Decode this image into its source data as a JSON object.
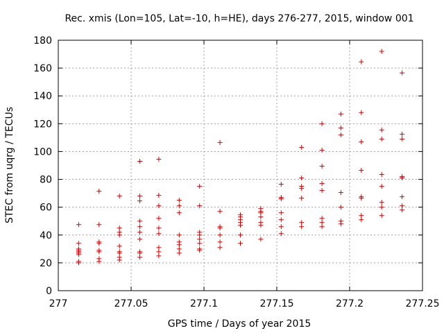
{
  "chart_data": {
    "type": "scatter",
    "title": "Rec. xmis (Lon=105, Lat=-10, h=HE), days 276-277, 2015, window 001",
    "xlabel": "GPS time / Days of year 2015",
    "ylabel": "STEC from uqrg / TECUs",
    "xlim": [
      277,
      277.25
    ],
    "ylim": [
      0,
      180
    ],
    "xticks": [
      "277",
      "277.05",
      "277.1",
      "277.15",
      "277.2",
      "277.25"
    ],
    "yticks": [
      "0",
      "20",
      "40",
      "60",
      "80",
      "100",
      "120",
      "140",
      "160",
      "180"
    ],
    "grid": true,
    "marker": "+",
    "color": "#d00000",
    "points": [
      [
        277.014,
        21
      ],
      [
        277.014,
        20
      ],
      [
        277.014,
        26
      ],
      [
        277.014,
        27
      ],
      [
        277.014,
        28
      ],
      [
        277.014,
        29
      ],
      [
        277.014,
        30
      ],
      [
        277.014,
        34
      ],
      [
        277.014,
        47.5
      ],
      [
        277.028,
        21
      ],
      [
        277.028,
        23
      ],
      [
        277.028,
        28
      ],
      [
        277.028,
        29
      ],
      [
        277.028,
        34
      ],
      [
        277.028,
        35
      ],
      [
        277.028,
        47.5
      ],
      [
        277.028,
        71.5
      ],
      [
        277.042,
        22
      ],
      [
        277.042,
        24
      ],
      [
        277.042,
        27
      ],
      [
        277.042,
        28
      ],
      [
        277.042,
        32
      ],
      [
        277.042,
        40
      ],
      [
        277.042,
        42
      ],
      [
        277.042,
        45
      ],
      [
        277.042,
        68
      ],
      [
        277.056,
        24
      ],
      [
        277.056,
        27
      ],
      [
        277.056,
        28
      ],
      [
        277.056,
        37
      ],
      [
        277.056,
        42
      ],
      [
        277.056,
        46
      ],
      [
        277.056,
        50
      ],
      [
        277.056,
        64.5
      ],
      [
        277.056,
        68
      ],
      [
        277.056,
        93
      ],
      [
        277.069,
        25
      ],
      [
        277.069,
        28
      ],
      [
        277.069,
        31
      ],
      [
        277.069,
        41
      ],
      [
        277.069,
        45
      ],
      [
        277.069,
        52
      ],
      [
        277.069,
        61
      ],
      [
        277.069,
        68.5
      ],
      [
        277.069,
        94.5
      ],
      [
        277.083,
        27
      ],
      [
        277.083,
        30
      ],
      [
        277.083,
        33
      ],
      [
        277.083,
        35
      ],
      [
        277.083,
        40
      ],
      [
        277.083,
        56
      ],
      [
        277.083,
        61
      ],
      [
        277.083,
        65
      ],
      [
        277.097,
        29
      ],
      [
        277.097,
        30
      ],
      [
        277.097,
        34
      ],
      [
        277.097,
        37
      ],
      [
        277.097,
        40
      ],
      [
        277.097,
        42
      ],
      [
        277.097,
        61
      ],
      [
        277.097,
        75
      ],
      [
        277.111,
        31
      ],
      [
        277.111,
        35
      ],
      [
        277.111,
        40
      ],
      [
        277.111,
        45
      ],
      [
        277.111,
        46
      ],
      [
        277.111,
        57
      ],
      [
        277.111,
        106.5
      ],
      [
        277.125,
        34
      ],
      [
        277.125,
        40
      ],
      [
        277.125,
        47
      ],
      [
        277.125,
        49
      ],
      [
        277.125,
        51
      ],
      [
        277.125,
        53
      ],
      [
        277.125,
        54.5
      ],
      [
        277.139,
        37
      ],
      [
        277.139,
        47
      ],
      [
        277.139,
        49
      ],
      [
        277.139,
        53
      ],
      [
        277.139,
        56
      ],
      [
        277.139,
        57
      ],
      [
        277.139,
        59
      ],
      [
        277.153,
        41
      ],
      [
        277.153,
        46
      ],
      [
        277.153,
        51
      ],
      [
        277.153,
        56
      ],
      [
        277.153,
        66
      ],
      [
        277.153,
        67
      ],
      [
        277.153,
        76.5
      ],
      [
        277.167,
        46
      ],
      [
        277.167,
        49
      ],
      [
        277.167,
        66.5
      ],
      [
        277.167,
        73.5
      ],
      [
        277.167,
        75
      ],
      [
        277.167,
        81
      ],
      [
        277.167,
        103
      ],
      [
        277.181,
        46
      ],
      [
        277.181,
        49
      ],
      [
        277.181,
        52
      ],
      [
        277.181,
        72
      ],
      [
        277.181,
        77
      ],
      [
        277.181,
        89.5
      ],
      [
        277.181,
        101
      ],
      [
        277.181,
        120
      ],
      [
        277.194,
        48
      ],
      [
        277.194,
        50
      ],
      [
        277.194,
        60
      ],
      [
        277.194,
        70.5
      ],
      [
        277.194,
        112
      ],
      [
        277.194,
        117
      ],
      [
        277.194,
        127
      ],
      [
        277.208,
        51
      ],
      [
        277.208,
        54
      ],
      [
        277.208,
        66.5
      ],
      [
        277.208,
        67.5
      ],
      [
        277.208,
        86.5
      ],
      [
        277.208,
        107
      ],
      [
        277.208,
        128
      ],
      [
        277.208,
        164.5
      ],
      [
        277.222,
        54
      ],
      [
        277.222,
        60
      ],
      [
        277.222,
        63.5
      ],
      [
        277.222,
        75
      ],
      [
        277.222,
        83.5
      ],
      [
        277.222,
        109
      ],
      [
        277.222,
        115.5
      ],
      [
        277.222,
        172
      ],
      [
        277.236,
        58
      ],
      [
        277.236,
        61
      ],
      [
        277.236,
        67.5
      ],
      [
        277.236,
        81
      ],
      [
        277.236,
        82
      ],
      [
        277.236,
        109
      ],
      [
        277.236,
        112.5
      ],
      [
        277.236,
        156.5
      ]
    ]
  }
}
